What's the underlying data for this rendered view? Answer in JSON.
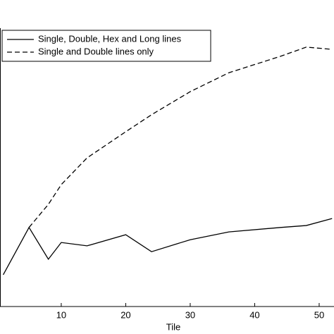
{
  "chart_data": {
    "type": "line",
    "x_label": "Tile",
    "x": [
      1,
      5,
      8,
      10,
      14,
      20,
      24,
      30,
      36,
      44,
      48,
      52
    ],
    "series": [
      {
        "name": "Single, Double, Hex and Long lines",
        "color": "#000000",
        "dash": "solid",
        "values": [
          11.4,
          28.4,
          17,
          23,
          21.8,
          25.8,
          19.7,
          24,
          26.8,
          28.4,
          29.1,
          31.6
        ]
      },
      {
        "name": "Single and Double lines only",
        "color": "#000000",
        "dash": "dashed",
        "values": [
          null,
          28.4,
          36.7,
          43.8,
          53.4,
          62.8,
          68.9,
          77.2,
          84,
          89.9,
          93.2,
          92.4
        ]
      }
    ],
    "xlim": [
      0.5,
      52.3
    ],
    "ylim": [
      0,
      100
    ],
    "xticks": [
      10,
      20,
      30,
      40,
      50
    ],
    "legend": "upper left"
  }
}
